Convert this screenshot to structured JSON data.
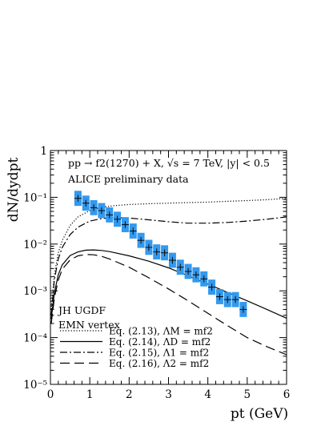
{
  "chart_data": {
    "type": "line",
    "title": "pp → f2(1270) + X,  √s = 7 TeV,  |y| < 0.5",
    "subtitle": "ALICE preliminary data",
    "annotation_lines": [
      "JH UGDF",
      "EMN vertex"
    ],
    "xlabel": "pt (GeV)",
    "ylabel": "dN/dydpt",
    "xlim": [
      0,
      6
    ],
    "ylim": [
      1e-05,
      1
    ],
    "yscale": "log",
    "xticks": [
      "0",
      "1",
      "2",
      "3",
      "4",
      "5",
      "6"
    ],
    "yticks": [
      "10⁻⁵",
      "10⁻⁴",
      "10⁻³",
      "10⁻²",
      "10⁻¹",
      "1"
    ],
    "grid": false,
    "legend_position": "bottom-left",
    "series": [
      {
        "name": "Eq. (2.13),  ΛM = mf2",
        "style": "dotted",
        "color": "#000000",
        "x": [
          0.02,
          0.1,
          0.2,
          0.3,
          0.5,
          0.7,
          1.0,
          1.3,
          1.6,
          2.0,
          2.5,
          3.0,
          3.5,
          4.0,
          4.5,
          5.0,
          5.5,
          6.0
        ],
        "y": [
          0.0004,
          0.0022,
          0.0065,
          0.012,
          0.025,
          0.038,
          0.052,
          0.061,
          0.066,
          0.07,
          0.073,
          0.075,
          0.077,
          0.079,
          0.082,
          0.085,
          0.089,
          0.095
        ]
      },
      {
        "name": "Eq. (2.14),  ΛD = mf2",
        "style": "solid",
        "color": "#000000",
        "x": [
          0.02,
          0.1,
          0.2,
          0.3,
          0.5,
          0.7,
          0.9,
          1.1,
          1.3,
          1.5,
          2.0,
          2.5,
          3.0,
          3.5,
          4.0,
          4.5,
          5.0,
          5.5,
          6.0
        ],
        "y": [
          0.00025,
          0.0009,
          0.0022,
          0.0036,
          0.0057,
          0.0068,
          0.0074,
          0.0075,
          0.0073,
          0.0069,
          0.0056,
          0.0043,
          0.0031,
          0.0021,
          0.0014,
          0.00092,
          0.00061,
          0.0004,
          0.00026
        ]
      },
      {
        "name": "Eq. (2.15),  Λ1 = mf2",
        "style": "dash-dot",
        "color": "#000000",
        "x": [
          0.02,
          0.1,
          0.2,
          0.3,
          0.5,
          0.7,
          1.0,
          1.3,
          1.6,
          2.0,
          2.5,
          3.0,
          3.5,
          4.0,
          4.5,
          5.0,
          5.5,
          6.0
        ],
        "y": [
          0.0003,
          0.0017,
          0.0048,
          0.0085,
          0.016,
          0.023,
          0.031,
          0.035,
          0.037,
          0.036,
          0.033,
          0.03,
          0.028,
          0.028,
          0.029,
          0.031,
          0.034,
          0.038
        ]
      },
      {
        "name": "Eq. (2.16),  Λ2 = mf2",
        "style": "dashed",
        "color": "#000000",
        "x": [
          0.02,
          0.1,
          0.2,
          0.3,
          0.5,
          0.7,
          0.9,
          1.1,
          1.3,
          1.5,
          2.0,
          2.5,
          3.0,
          3.5,
          4.0,
          4.5,
          5.0,
          5.5,
          6.0
        ],
        "y": [
          0.0002,
          0.0007,
          0.0017,
          0.0029,
          0.0046,
          0.0056,
          0.006,
          0.0059,
          0.0055,
          0.0048,
          0.0032,
          0.0019,
          0.0011,
          0.00061,
          0.00033,
          0.00018,
          0.0001,
          6.4e-05,
          4.3e-05
        ]
      },
      {
        "name": "ALICE preliminary data",
        "style": "points",
        "color": "#0a0a0a",
        "box_color": "#3399ee",
        "x": [
          0.7,
          0.9,
          1.1,
          1.3,
          1.5,
          1.7,
          1.9,
          2.1,
          2.3,
          2.5,
          2.7,
          2.9,
          3.1,
          3.3,
          3.5,
          3.7,
          3.9,
          4.1,
          4.3,
          4.5,
          4.7,
          4.9
        ],
        "y": [
          0.095,
          0.075,
          0.06,
          0.052,
          0.042,
          0.034,
          0.026,
          0.019,
          0.012,
          0.0085,
          0.0068,
          0.0065,
          0.0045,
          0.0032,
          0.0026,
          0.0022,
          0.0018,
          0.0012,
          0.00075,
          0.00065,
          0.00065,
          0.0004
        ]
      }
    ]
  }
}
